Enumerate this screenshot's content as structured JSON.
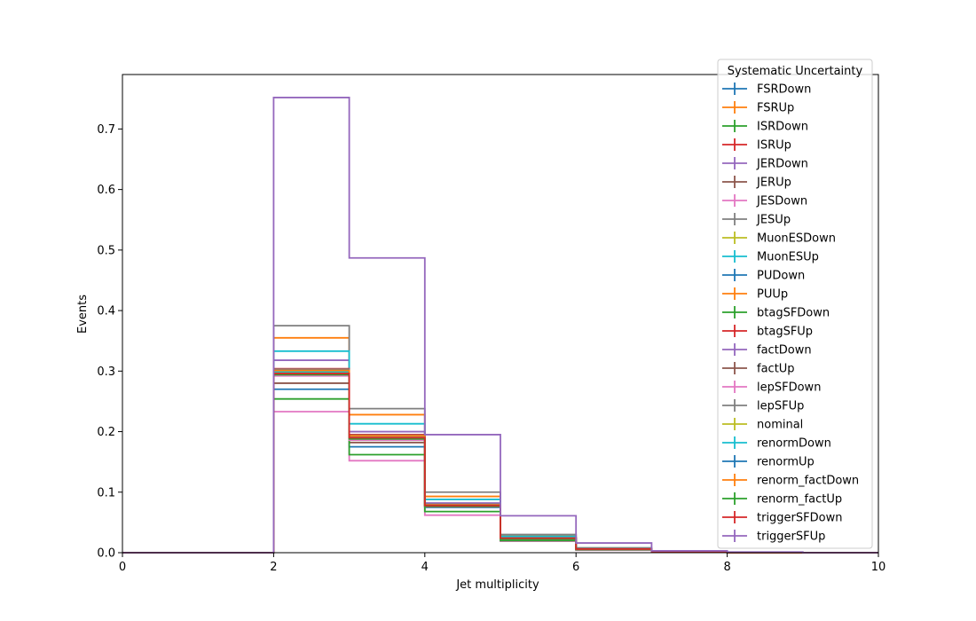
{
  "chart_data": {
    "type": "step-histogram",
    "xlabel": "Jet multiplicity",
    "ylabel": "Events",
    "xlim": [
      0,
      10
    ],
    "ylim": [
      0,
      0.79
    ],
    "x_ticks": [
      0,
      2,
      4,
      6,
      8,
      10
    ],
    "y_ticks": [
      0.0,
      0.1,
      0.2,
      0.3,
      0.4,
      0.5,
      0.6,
      0.7
    ],
    "y_tick_labels": [
      "0.0",
      "0.1",
      "0.2",
      "0.3",
      "0.4",
      "0.5",
      "0.6",
      "0.7"
    ],
    "bin_edges": [
      0,
      1,
      2,
      3,
      4,
      5,
      6,
      7,
      8,
      9,
      10
    ],
    "grid": false,
    "legend": {
      "title": "Systematic Uncertainty",
      "placement": "top-right"
    },
    "series": [
      {
        "name": "FSRDown",
        "color": "#1f77b4",
        "values": [
          0,
          0,
          0.27,
          0.175,
          0.075,
          0.022,
          0.005,
          0.001,
          0,
          0
        ]
      },
      {
        "name": "FSRUp",
        "color": "#ff7f0e",
        "values": [
          0,
          0,
          0.355,
          0.228,
          0.093,
          0.029,
          0.007,
          0.002,
          0,
          0
        ]
      },
      {
        "name": "ISRDown",
        "color": "#2ca02c",
        "values": [
          0,
          0,
          0.295,
          0.188,
          0.078,
          0.023,
          0.006,
          0.001,
          0,
          0
        ]
      },
      {
        "name": "ISRUp",
        "color": "#d62728",
        "values": [
          0,
          0,
          0.302,
          0.194,
          0.08,
          0.024,
          0.006,
          0.001,
          0,
          0
        ]
      },
      {
        "name": "JERDown",
        "color": "#9467bd",
        "values": [
          0,
          0,
          0.318,
          0.2,
          0.082,
          0.025,
          0.006,
          0.001,
          0,
          0
        ]
      },
      {
        "name": "JERUp",
        "color": "#8c564b",
        "values": [
          0,
          0,
          0.28,
          0.182,
          0.076,
          0.023,
          0.005,
          0.001,
          0,
          0
        ]
      },
      {
        "name": "JESDown",
        "color": "#e377c2",
        "values": [
          0,
          0,
          0.233,
          0.152,
          0.062,
          0.019,
          0.004,
          0.001,
          0,
          0
        ]
      },
      {
        "name": "JESUp",
        "color": "#7f7f7f",
        "values": [
          0,
          0,
          0.375,
          0.238,
          0.1,
          0.03,
          0.008,
          0.002,
          0,
          0
        ]
      },
      {
        "name": "MuonESDown",
        "color": "#bcbd22",
        "values": [
          0,
          0,
          0.296,
          0.19,
          0.078,
          0.024,
          0.006,
          0.001,
          0,
          0
        ]
      },
      {
        "name": "MuonESUp",
        "color": "#17becf",
        "values": [
          0,
          0,
          0.333,
          0.213,
          0.088,
          0.027,
          0.006,
          0.001,
          0,
          0
        ]
      },
      {
        "name": "PUDown",
        "color": "#1f77b4",
        "values": [
          0,
          0,
          0.298,
          0.191,
          0.079,
          0.024,
          0.006,
          0.001,
          0,
          0
        ]
      },
      {
        "name": "PUUp",
        "color": "#ff7f0e",
        "values": [
          0,
          0,
          0.297,
          0.19,
          0.078,
          0.024,
          0.006,
          0.001,
          0,
          0
        ]
      },
      {
        "name": "btagSFDown",
        "color": "#2ca02c",
        "values": [
          0,
          0,
          0.254,
          0.162,
          0.068,
          0.02,
          0.005,
          0.001,
          0,
          0
        ]
      },
      {
        "name": "btagSFUp",
        "color": "#d62728",
        "values": [
          0,
          0,
          0.304,
          0.195,
          0.08,
          0.024,
          0.006,
          0.001,
          0,
          0
        ]
      },
      {
        "name": "factDown",
        "color": "#9467bd",
        "values": [
          0,
          0,
          0.3,
          0.193,
          0.079,
          0.024,
          0.006,
          0.001,
          0,
          0
        ]
      },
      {
        "name": "factUp",
        "color": "#8c564b",
        "values": [
          0,
          0,
          0.297,
          0.19,
          0.078,
          0.024,
          0.006,
          0.001,
          0,
          0
        ]
      },
      {
        "name": "lepSFDown",
        "color": "#e377c2",
        "values": [
          0,
          0,
          0.292,
          0.186,
          0.077,
          0.023,
          0.006,
          0.001,
          0,
          0
        ]
      },
      {
        "name": "lepSFUp",
        "color": "#7f7f7f",
        "values": [
          0,
          0,
          0.303,
          0.194,
          0.08,
          0.024,
          0.006,
          0.001,
          0,
          0
        ]
      },
      {
        "name": "nominal",
        "color": "#bcbd22",
        "values": [
          0,
          0,
          0.297,
          0.19,
          0.078,
          0.024,
          0.006,
          0.001,
          0,
          0
        ]
      },
      {
        "name": "renormDown",
        "color": "#17becf",
        "values": [
          0,
          0,
          0.299,
          0.192,
          0.079,
          0.024,
          0.006,
          0.001,
          0,
          0
        ]
      },
      {
        "name": "renormUp",
        "color": "#1f77b4",
        "values": [
          0,
          0,
          0.295,
          0.189,
          0.078,
          0.024,
          0.006,
          0.001,
          0,
          0
        ]
      },
      {
        "name": "renorm_factDown",
        "color": "#ff7f0e",
        "values": [
          0,
          0,
          0.301,
          0.193,
          0.079,
          0.024,
          0.006,
          0.001,
          0,
          0
        ]
      },
      {
        "name": "renorm_factUp",
        "color": "#2ca02c",
        "values": [
          0,
          0,
          0.294,
          0.188,
          0.077,
          0.023,
          0.006,
          0.001,
          0,
          0
        ]
      },
      {
        "name": "triggerSFDown",
        "color": "#d62728",
        "values": [
          0,
          0,
          0.296,
          0.19,
          0.078,
          0.024,
          0.006,
          0.001,
          0,
          0
        ]
      },
      {
        "name": "triggerSFUp",
        "color": "#9467bd",
        "values": [
          0,
          0,
          0.752,
          0.487,
          0.195,
          0.061,
          0.016,
          0.003,
          0.001,
          0
        ]
      }
    ]
  }
}
